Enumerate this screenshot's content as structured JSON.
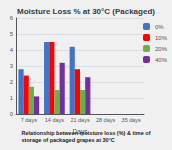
{
  "chart_data": {
    "type": "bar",
    "title": "Moisture Loss % at 30°C (Packaged)",
    "xlabel": "Days",
    "caption": "Relationship between moisture loss (%) & time of\nstorage of packaged grapes at 30°C",
    "categories": [
      "7 days",
      "14 days",
      "21 days",
      "28 days",
      "35 days"
    ],
    "series": [
      {
        "name": "0%  ",
        "color": "#4472C4",
        "values": [
          2.8,
          4.5,
          4.2,
          0,
          0
        ]
      },
      {
        "name": "10%",
        "color": "#FF0000",
        "values": [
          2.4,
          4.5,
          2.8,
          0,
          0
        ]
      },
      {
        "name": "20%",
        "color": "#70AD47",
        "values": [
          1.7,
          1.5,
          1.5,
          0,
          0
        ]
      },
      {
        "name": "40%",
        "color": "#7030A0",
        "values": [
          1.1,
          3.2,
          2.3,
          0,
          0
        ]
      }
    ],
    "ylim": [
      0,
      6
    ],
    "yticks": [
      0,
      1,
      2,
      3,
      4,
      5,
      6
    ],
    "grid": true,
    "legend": "right"
  }
}
